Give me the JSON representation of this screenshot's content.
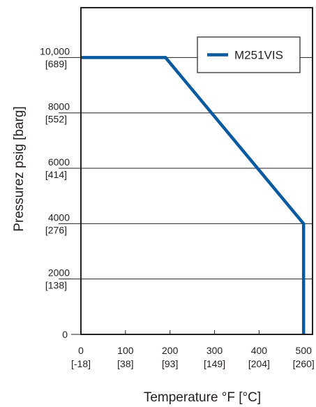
{
  "chart_data": {
    "type": "line",
    "title": "",
    "xlabel": "Temperature °F [°C]",
    "ylabel": "Pressurez psig [barg]",
    "xlim": [
      0,
      520
    ],
    "ylim": [
      0,
      11800
    ],
    "grid": "horizontal",
    "legend_position": "top-right",
    "series_color": "#0a5aa0",
    "x_ticks": [
      {
        "value": 0,
        "label": "0",
        "sublabel": "[-18]"
      },
      {
        "value": 100,
        "label": "100",
        "sublabel": "[38]"
      },
      {
        "value": 200,
        "label": "200",
        "sublabel": "[93]"
      },
      {
        "value": 300,
        "label": "300",
        "sublabel": "[149]"
      },
      {
        "value": 400,
        "label": "400",
        "sublabel": "[204]"
      },
      {
        "value": 500,
        "label": "500",
        "sublabel": "[260]"
      }
    ],
    "y_ticks": [
      {
        "value": 0,
        "label": "0",
        "sublabel": ""
      },
      {
        "value": 2000,
        "label": "2000",
        "sublabel": "[138]"
      },
      {
        "value": 4000,
        "label": "4000",
        "sublabel": "[276]"
      },
      {
        "value": 6000,
        "label": "6000",
        "sublabel": "[414]"
      },
      {
        "value": 8000,
        "label": "8000",
        "sublabel": "[552]"
      },
      {
        "value": 10000,
        "label": "10,000",
        "sublabel": "[689]"
      }
    ],
    "series": [
      {
        "name": "M251VIS",
        "x": [
          0,
          190,
          500,
          500
        ],
        "y": [
          10000,
          10000,
          4000,
          0
        ]
      }
    ]
  }
}
